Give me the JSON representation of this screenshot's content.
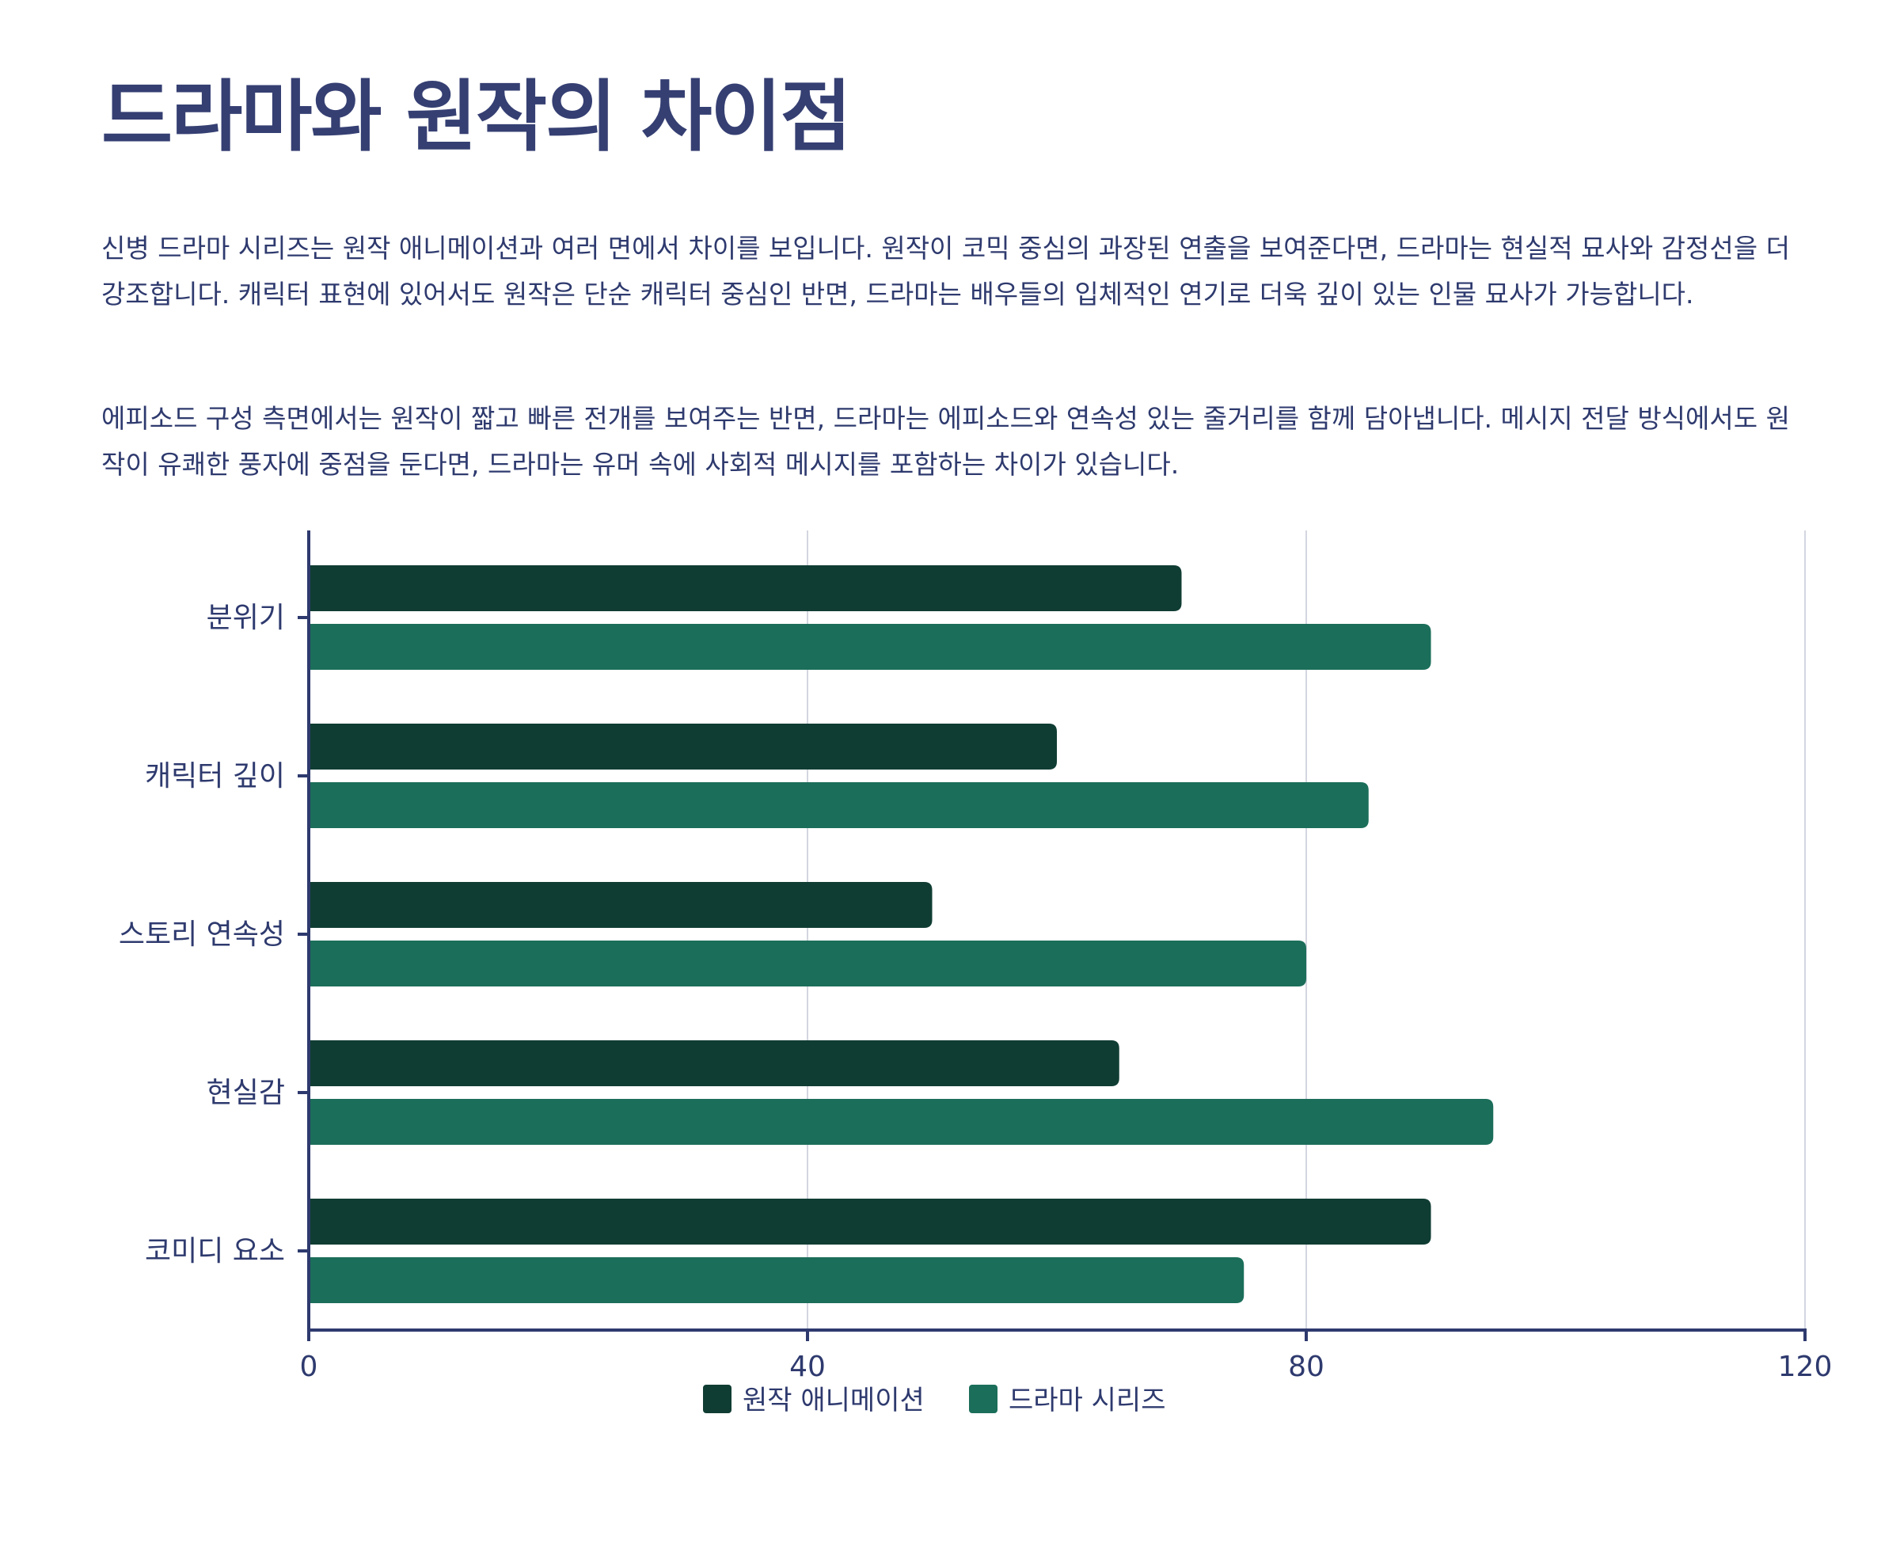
{
  "heading": "드라마와 원작의 차이점",
  "paragraphs": [
    "신병 드라마 시리즈는 원작 애니메이션과 여러 면에서 차이를 보입니다. 원작이 코믹 중심의 과장된 연출을 보여준다면, 드라마는 현실적 묘사와 감정선을 더 강조합니다. 캐릭터 표현에 있어서도 원작은 단순 캐릭터 중심인 반면, 드라마는 배우들의 입체적인 연기로 더욱 깊이 있는 인물 묘사가 가능합니다.",
    "에피소드 구성 측면에서는 원작이 짧고 빠른 전개를 보여주는 반면, 드라마는 에피소드와 연속성 있는 줄거리를 함께 담아냅니다. 메시지 전달 방식에서도 원작이 유쾌한 풍자에 중점을 둔다면, 드라마는 유머 속에 사회적 메시지를 포함하는 차이가 있습니다."
  ],
  "colors": {
    "original": "#103d33",
    "drama": "#1b6e5a",
    "axis": "#2e3a6e",
    "grid": "#d3d6e0"
  },
  "chart_data": {
    "type": "bar",
    "orientation": "horizontal",
    "categories": [
      "분위기",
      "캐릭터 깊이",
      "스토리 연속성",
      "현실감",
      "코미디 요소"
    ],
    "series": [
      {
        "name": "원작 애니메이션",
        "values": [
          70,
          60,
          50,
          65,
          90
        ]
      },
      {
        "name": "드라마 시리즈",
        "values": [
          90,
          85,
          80,
          95,
          75
        ]
      }
    ],
    "xlim": [
      0,
      120
    ],
    "xticks": [
      0,
      40,
      80,
      120
    ],
    "legend": "bottom-center",
    "grid": true
  }
}
